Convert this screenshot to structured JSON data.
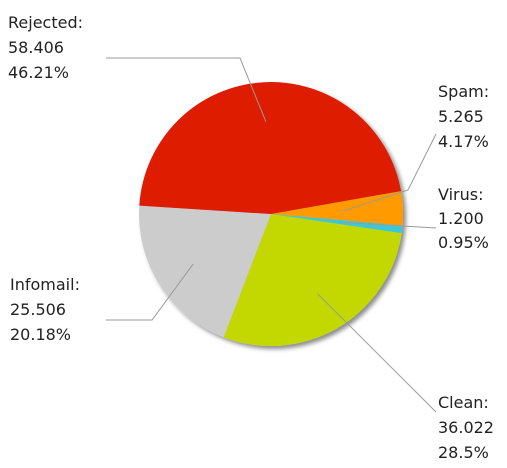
{
  "chart_data": {
    "type": "pie",
    "title": "",
    "slices": [
      {
        "label": "Rejected:",
        "value": "58.406",
        "percent": "46.21%",
        "value_num": 58406,
        "color": "#dd1a00"
      },
      {
        "label": "Spam:",
        "value": "5.265",
        "percent": "4.17%",
        "value_num": 5265,
        "color": "#ff9a00"
      },
      {
        "label": "Virus:",
        "value": "1.200",
        "percent": "0.95%",
        "value_num": 1200,
        "color": "#3cc8d8"
      },
      {
        "label": "Clean:",
        "value": "36.022",
        "percent": "28.5%",
        "value_num": 36022,
        "color": "#c2d800"
      },
      {
        "label": "Infomail:",
        "value": "25.506",
        "percent": "20.18%",
        "value_num": 25506,
        "color": "#cccccc"
      }
    ]
  }
}
